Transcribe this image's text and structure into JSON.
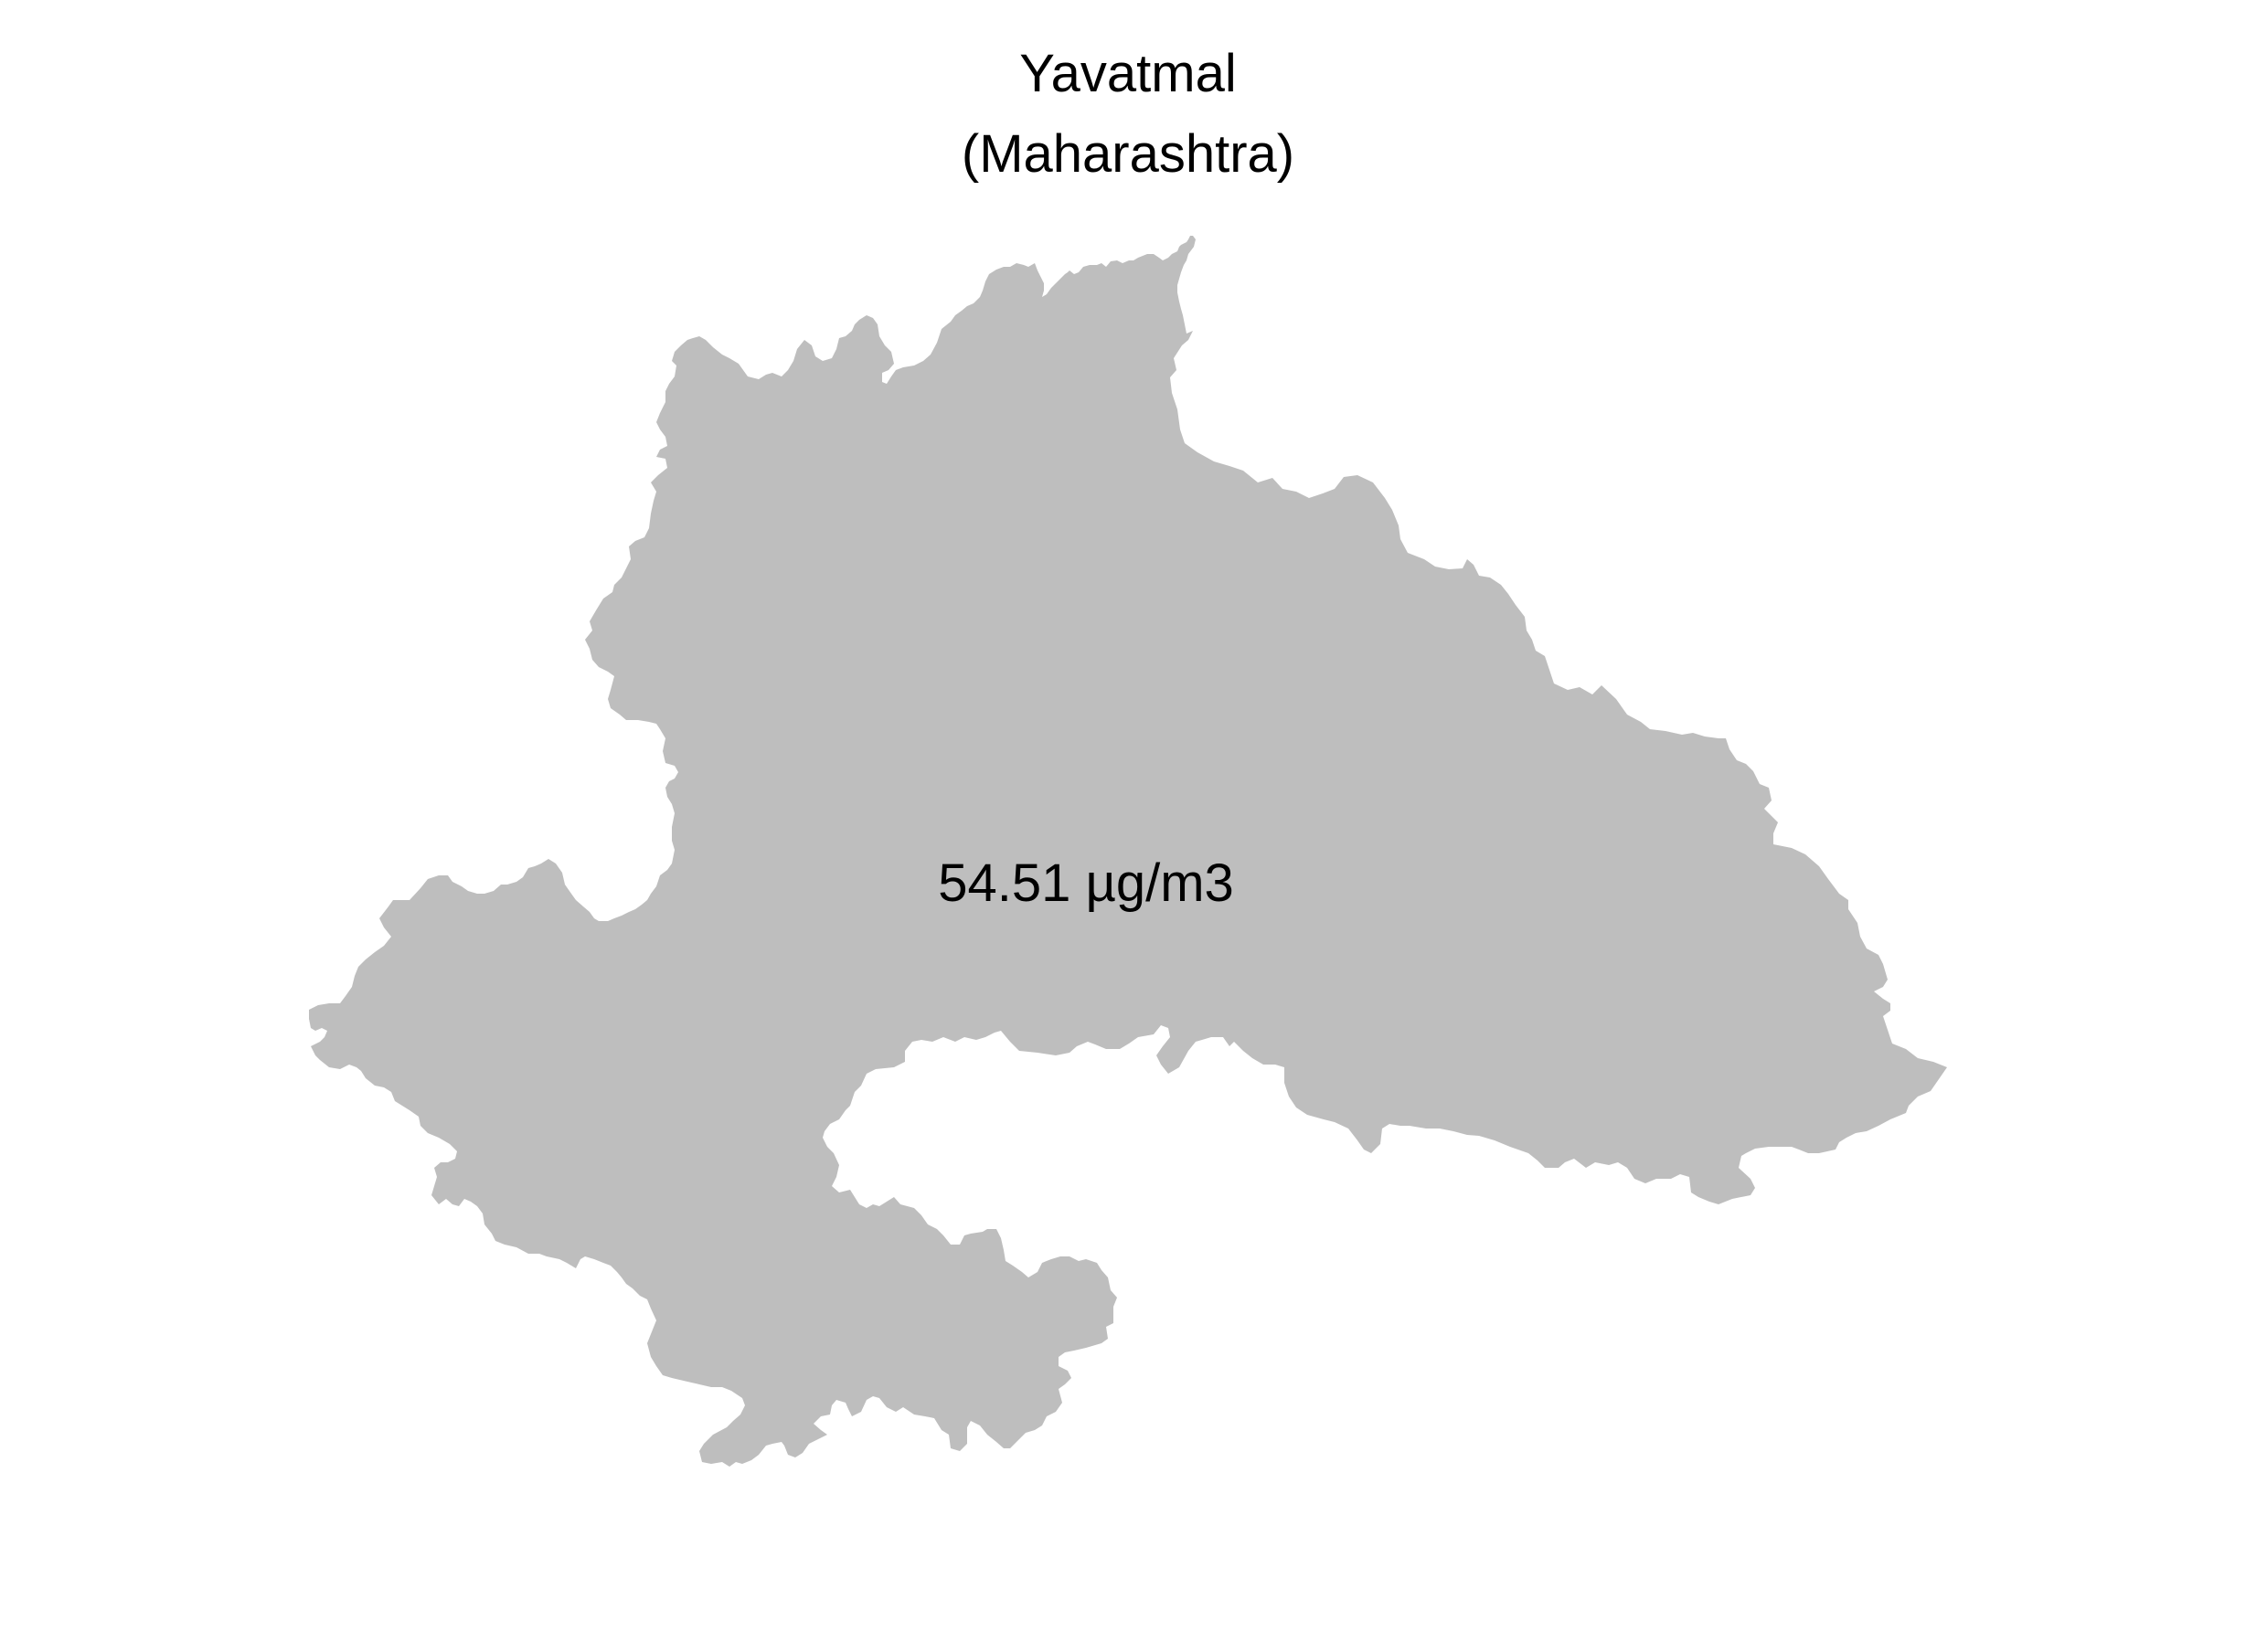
{
  "map": {
    "title": "Yavatmal",
    "subtitle": "(Maharashtra)",
    "region_name": "Yavatmal",
    "value_label": "54.51 µg/m3",
    "value": 54.51,
    "unit": "µg/m3",
    "fill_color": "#bebebe",
    "background_color": "#ffffff"
  }
}
